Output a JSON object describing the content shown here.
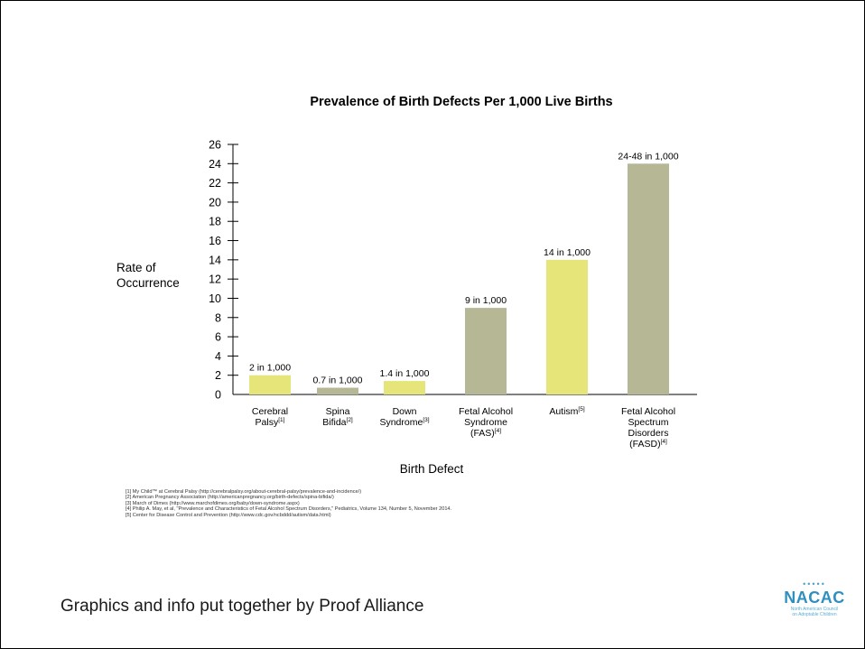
{
  "slide": {
    "credit": "Graphics and info put together by Proof Alliance",
    "logo": {
      "icons": "•••••",
      "name": "NACAC",
      "tagline_1": "North American Council",
      "tagline_2": "on Adoptable Children"
    },
    "footnotes": [
      "[1] My Child™ at Cerebral Palsy (http://cerebralpalsy.org/about-cerebral-palsy/prevalence-and-incidence/)",
      "[2] American Pregnancy Association (http://americanpregnancy.org/birth-defects/spina-bifida/)",
      "[3] March of Dimes (http://www.marchofdimes.org/baby/down-syndrome.aspx)",
      "[4] Philip A. May, et al, \"Prevalence and Characteristics of Fetal Alcohol Spectrum Disorders,\" Pediatrics, Volume 134, Number 5, November 2014.",
      "[5] Center for Disease Control and Prevention (http://www.cdc.gov/ncbddd/autism/data.html)"
    ]
  },
  "chart_data": {
    "type": "bar",
    "title": "Prevalence of Birth Defects Per 1,000 Live Births",
    "ylabel": "Rate of Occurrence",
    "xlabel": "Birth Defect",
    "ylim": [
      0,
      26
    ],
    "yticks": [
      0,
      2,
      4,
      6,
      8,
      10,
      12,
      14,
      16,
      18,
      20,
      22,
      24,
      26
    ],
    "grid": false,
    "colors": {
      "yellow": "#e5e57a",
      "olive": "#b5b795",
      "axis": "#000000"
    },
    "bars": [
      {
        "name": "Cerebral",
        "label": [
          "Cerebral",
          "Palsy"
        ],
        "ref": "[1]",
        "value": 2,
        "data_label": "2 in 1,000",
        "color": "yellow"
      },
      {
        "name": "Spina",
        "label": [
          "Spina",
          "Bifida"
        ],
        "ref": "[2]",
        "value": 0.7,
        "data_label": "0.7 in 1,000",
        "color": "olive"
      },
      {
        "name": "Down",
        "label": [
          "Down",
          "Syndrome"
        ],
        "ref": "[3]",
        "value": 1.4,
        "data_label": "1.4 in 1,000",
        "color": "yellow"
      },
      {
        "name": "FAS",
        "label": [
          "Fetal Alcohol",
          "Syndrome",
          "(FAS)"
        ],
        "ref": "[4]",
        "value": 9,
        "data_label": "9 in 1,000",
        "color": "olive"
      },
      {
        "name": "Autism",
        "label": [
          "Autism"
        ],
        "ref": "[5]",
        "value": 14,
        "data_label": "14 in 1,000",
        "color": "yellow"
      },
      {
        "name": "FASD",
        "label": [
          "Fetal Alcohol",
          "Spectrum",
          "Disorders",
          "(FASD)"
        ],
        "ref": "[4]",
        "value": 24,
        "data_label": "24-48 in 1,000",
        "color": "olive"
      }
    ]
  }
}
